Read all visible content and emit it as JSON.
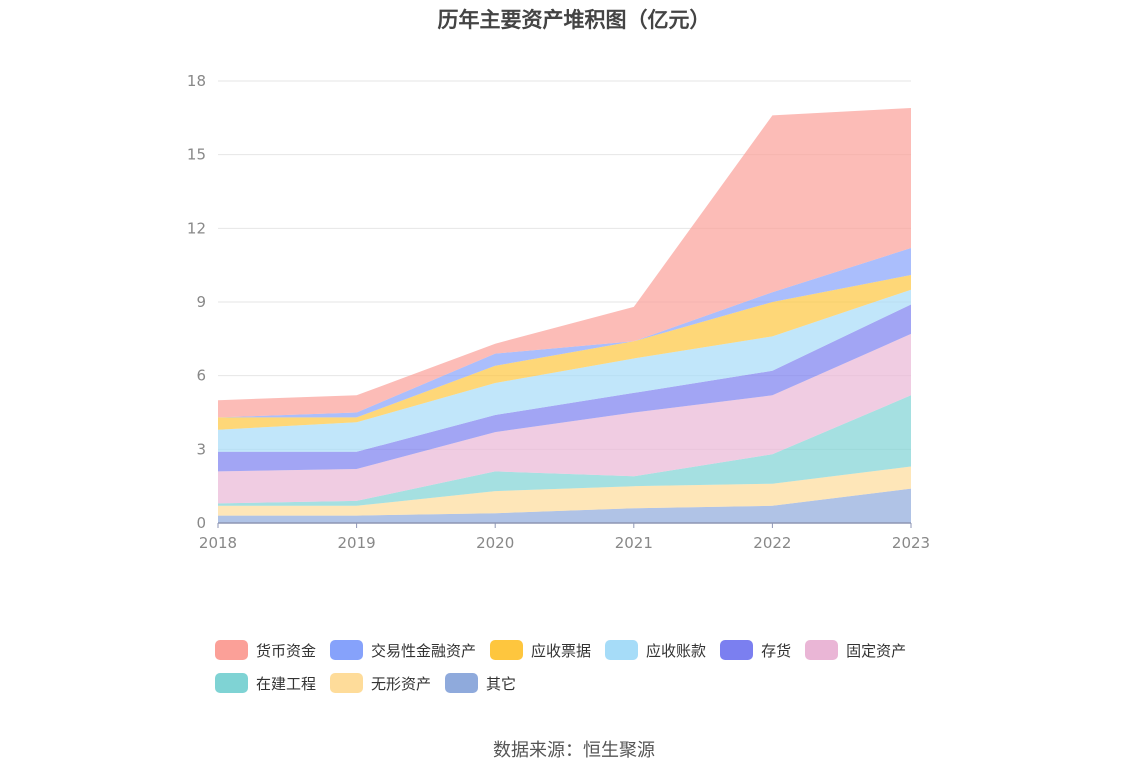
{
  "chart_data": {
    "type": "area",
    "stacked": true,
    "title": "历年主要资产堆积图（亿元）",
    "xlabel": "",
    "ylabel": "",
    "categories": [
      "2018",
      "2019",
      "2020",
      "2021",
      "2022",
      "2023"
    ],
    "ylim": [
      0,
      18
    ],
    "yticks": [
      0,
      3,
      6,
      9,
      12,
      15,
      18
    ],
    "grid": true,
    "legend_position": "bottom",
    "series": [
      {
        "name": "其它",
        "color": "#8faadc",
        "values": [
          0.3,
          0.3,
          0.4,
          0.6,
          0.7,
          1.4
        ]
      },
      {
        "name": "无形资产",
        "color": "#fedc9a",
        "values": [
          0.4,
          0.4,
          0.9,
          0.9,
          0.9,
          0.9
        ]
      },
      {
        "name": "在建工程",
        "color": "#7fd3d4",
        "values": [
          0.1,
          0.2,
          0.8,
          0.4,
          1.2,
          2.9
        ]
      },
      {
        "name": "固定资产",
        "color": "#eab6d6",
        "values": [
          1.3,
          1.3,
          1.6,
          2.6,
          2.4,
          2.5
        ]
      },
      {
        "name": "存货",
        "color": "#7b7ff0",
        "values": [
          0.8,
          0.7,
          0.7,
          0.8,
          1.0,
          1.2
        ]
      },
      {
        "name": "应收账款",
        "color": "#a6dcf8",
        "values": [
          0.9,
          1.2,
          1.3,
          1.4,
          1.4,
          0.6
        ]
      },
      {
        "name": "应收票据",
        "color": "#fec63e",
        "values": [
          0.5,
          0.2,
          0.7,
          0.7,
          1.4,
          0.6
        ]
      },
      {
        "name": "交易性金融资产",
        "color": "#86a2fb",
        "values": [
          0.0,
          0.2,
          0.5,
          0.0,
          0.4,
          1.1
        ]
      },
      {
        "name": "货币资金",
        "color": "#fba098",
        "values": [
          0.7,
          0.7,
          0.4,
          1.4,
          7.2,
          5.7
        ]
      }
    ]
  },
  "legend_order": [
    "货币资金",
    "交易性金融资产",
    "应收票据",
    "应收账款",
    "存货",
    "固定资产",
    "在建工程",
    "无形资产",
    "其它"
  ],
  "source": "数据来源：恒生聚源"
}
